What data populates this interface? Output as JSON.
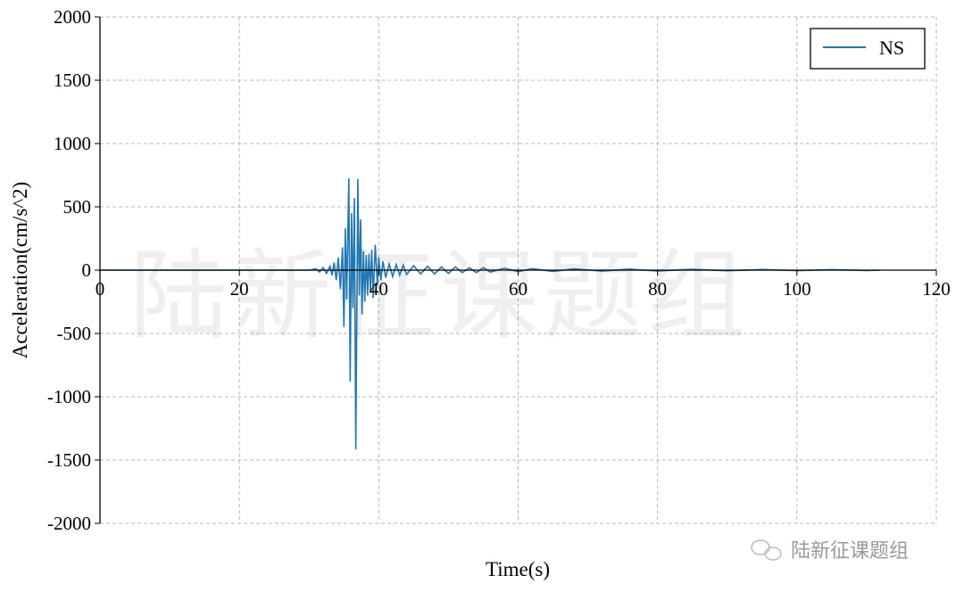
{
  "chart_data": {
    "type": "line",
    "title": "",
    "xlabel": "Time(s)",
    "ylabel": "Acceleration(cm/s^2)",
    "xlim": [
      0,
      120
    ],
    "ylim": [
      -2000,
      2000
    ],
    "xticks": [
      0,
      20,
      40,
      60,
      80,
      100,
      120
    ],
    "yticks": [
      -2000,
      -1500,
      -1000,
      -500,
      0,
      500,
      1000,
      1500,
      2000
    ],
    "grid": true,
    "legend_position": "top-right",
    "series": [
      {
        "name": "NS",
        "color": "#1f77b4",
        "points": [
          [
            0,
            0
          ],
          [
            30,
            0
          ],
          [
            31,
            10
          ],
          [
            31.5,
            -15
          ],
          [
            32,
            20
          ],
          [
            32.5,
            -25
          ],
          [
            33,
            30
          ],
          [
            33.3,
            -40
          ],
          [
            33.6,
            60
          ],
          [
            33.9,
            -80
          ],
          [
            34.2,
            100
          ],
          [
            34.5,
            -150
          ],
          [
            34.8,
            180
          ],
          [
            35,
            -450
          ],
          [
            35.2,
            330
          ],
          [
            35.4,
            -230
          ],
          [
            35.7,
            725
          ],
          [
            35.9,
            -880
          ],
          [
            36.1,
            450
          ],
          [
            36.3,
            -300
          ],
          [
            36.5,
            570
          ],
          [
            36.7,
            -1415
          ],
          [
            37.0,
            718
          ],
          [
            37.2,
            -200
          ],
          [
            37.4,
            400
          ],
          [
            37.6,
            -350
          ],
          [
            37.8,
            150
          ],
          [
            38,
            -250
          ],
          [
            38.2,
            120
          ],
          [
            38.4,
            -200
          ],
          [
            38.6,
            130
          ],
          [
            38.8,
            -180
          ],
          [
            39,
            160
          ],
          [
            39.2,
            -220
          ],
          [
            39.5,
            200
          ],
          [
            39.8,
            -120
          ],
          [
            40,
            100
          ],
          [
            40.3,
            -80
          ],
          [
            40.6,
            70
          ],
          [
            41,
            -60
          ],
          [
            41.5,
            50
          ],
          [
            42,
            -50
          ],
          [
            42.5,
            45
          ],
          [
            43,
            -40
          ],
          [
            43.5,
            40
          ],
          [
            44,
            -35
          ],
          [
            45,
            35
          ],
          [
            46,
            -30
          ],
          [
            47,
            30
          ],
          [
            48,
            -30
          ],
          [
            49,
            25
          ],
          [
            50,
            -25
          ],
          [
            51,
            25
          ],
          [
            52,
            -20
          ],
          [
            53,
            20
          ],
          [
            54,
            -20
          ],
          [
            55,
            20
          ],
          [
            56,
            -15
          ],
          [
            58,
            15
          ],
          [
            60,
            -12
          ],
          [
            62,
            12
          ],
          [
            65,
            -10
          ],
          [
            68,
            10
          ],
          [
            72,
            -8
          ],
          [
            76,
            8
          ],
          [
            80,
            -6
          ],
          [
            85,
            6
          ],
          [
            90,
            -5
          ],
          [
            95,
            5
          ],
          [
            100,
            -4
          ],
          [
            105,
            4
          ],
          [
            110,
            -3
          ],
          [
            112,
            0
          ]
        ]
      }
    ]
  },
  "watermark": "陆新征课题组",
  "footer_watermark": "陆新征课题组"
}
